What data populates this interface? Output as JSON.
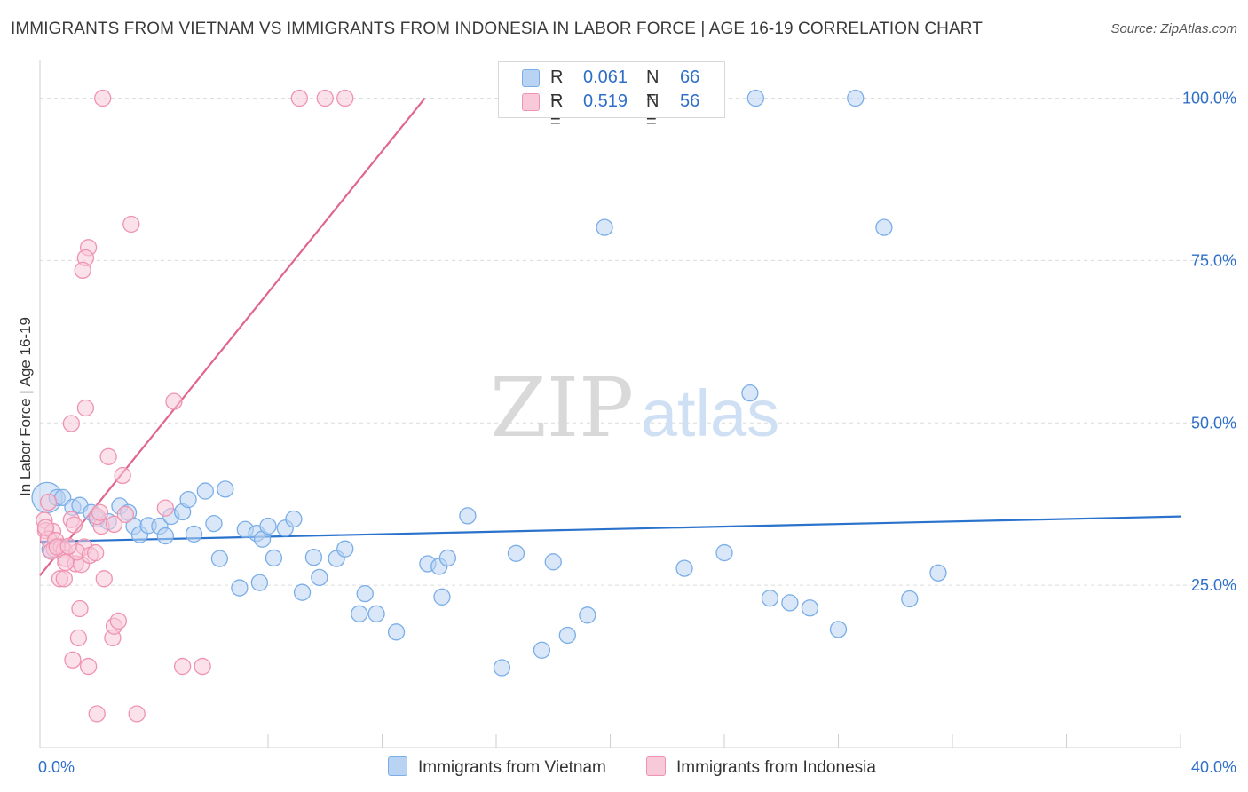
{
  "header": {
    "title": "IMMIGRANTS FROM VIETNAM VS IMMIGRANTS FROM INDONESIA IN LABOR FORCE | AGE 16-19 CORRELATION CHART",
    "source": "Source: ZipAtlas.com"
  },
  "watermark": {
    "zip": "ZIP",
    "atlas": "atlas"
  },
  "legend": {
    "vietnam": {
      "r_label": "R =",
      "r_value": "0.061",
      "n_label": "N =",
      "n_value": "66"
    },
    "indonesia": {
      "r_label": "R =",
      "r_value": "0.519",
      "n_label": "N =",
      "n_value": "56"
    }
  },
  "chart_data": {
    "type": "scatter",
    "ylabel": "In Labor Force | Age 16-19",
    "xlim": [
      0,
      40
    ],
    "ylim": [
      0,
      105
    ],
    "x_ticks": [
      0,
      40
    ],
    "x_tick_labels": [
      "0.0%",
      "40.0%"
    ],
    "y_ticks": [
      25,
      50,
      75,
      100
    ],
    "y_tick_labels": [
      "25.0%",
      "50.0%",
      "75.0%",
      "100.0%"
    ],
    "grid": "horizontal-dashed",
    "legend_position": "top-center",
    "series": [
      {
        "name": "Immigrants from Vietnam",
        "color": "#7aaee8",
        "fill": "#b9d3f2",
        "trend": {
          "x": [
            0,
            40
          ],
          "y": [
            31.7,
            35.6
          ],
          "color": "#2a72cc"
        },
        "points": [
          [
            0.25,
            38.5
          ],
          [
            0.6,
            38.5
          ],
          [
            0.8,
            38.5
          ],
          [
            1.15,
            37
          ],
          [
            1.4,
            37.3
          ],
          [
            1.8,
            36.2
          ],
          [
            2.0,
            35.2
          ],
          [
            2.4,
            34.8
          ],
          [
            2.8,
            37.2
          ],
          [
            3.1,
            36.2
          ],
          [
            3.3,
            34.1
          ],
          [
            3.5,
            32.8
          ],
          [
            3.8,
            34.2
          ],
          [
            4.2,
            34.1
          ],
          [
            4.4,
            32.6
          ],
          [
            4.6,
            35.6
          ],
          [
            5.0,
            36.3
          ],
          [
            5.2,
            38.2
          ],
          [
            5.4,
            32.9
          ],
          [
            5.8,
            39.5
          ],
          [
            6.1,
            34.5
          ],
          [
            6.3,
            29.1
          ],
          [
            6.5,
            39.8
          ],
          [
            7.0,
            24.6
          ],
          [
            7.2,
            33.6
          ],
          [
            7.6,
            33.0
          ],
          [
            7.8,
            32.1
          ],
          [
            7.7,
            25.4
          ],
          [
            8.0,
            34.1
          ],
          [
            8.2,
            29.2
          ],
          [
            8.6,
            33.8
          ],
          [
            8.9,
            35.2
          ],
          [
            9.2,
            23.9
          ],
          [
            9.8,
            26.2
          ],
          [
            9.6,
            29.3
          ],
          [
            10.4,
            29.1
          ],
          [
            10.7,
            30.6
          ],
          [
            11.2,
            20.6
          ],
          [
            11.4,
            23.7
          ],
          [
            11.8,
            20.6
          ],
          [
            12.5,
            17.8
          ],
          [
            13.6,
            28.3
          ],
          [
            14.0,
            27.9
          ],
          [
            14.3,
            29.2
          ],
          [
            14.1,
            23.2
          ],
          [
            15.0,
            35.7
          ],
          [
            16.2,
            12.3
          ],
          [
            16.7,
            29.9
          ],
          [
            17.6,
            15.0
          ],
          [
            18.0,
            28.6
          ],
          [
            18.5,
            17.3
          ],
          [
            19.2,
            20.4
          ],
          [
            19.8,
            80.1
          ],
          [
            22.6,
            27.6
          ],
          [
            24.0,
            30.0
          ],
          [
            24.9,
            54.6
          ],
          [
            25.1,
            100
          ],
          [
            25.6,
            23.0
          ],
          [
            26.3,
            22.3
          ],
          [
            27.0,
            21.5
          ],
          [
            28.0,
            18.2
          ],
          [
            28.6,
            100
          ],
          [
            29.6,
            80.1
          ],
          [
            30.5,
            22.9
          ],
          [
            31.5,
            26.9
          ],
          [
            0.35,
            30.5
          ]
        ]
      },
      {
        "name": "Immigrants from Indonesia",
        "color": "#ef93b0",
        "fill": "#f8c9d8",
        "trend": {
          "x": [
            0,
            13.5
          ],
          "y": [
            26.5,
            100
          ],
          "color": "#e06591"
        },
        "points": [
          [
            2.2,
            100
          ],
          [
            9.1,
            100
          ],
          [
            10.0,
            100
          ],
          [
            10.7,
            100
          ],
          [
            3.2,
            80.6
          ],
          [
            1.7,
            77.0
          ],
          [
            1.6,
            75.4
          ],
          [
            1.5,
            73.5
          ],
          [
            4.7,
            53.3
          ],
          [
            1.6,
            52.3
          ],
          [
            1.1,
            49.9
          ],
          [
            2.4,
            44.8
          ],
          [
            2.9,
            41.9
          ],
          [
            0.3,
            37.8
          ],
          [
            0.15,
            35.0
          ],
          [
            0.2,
            33.4
          ],
          [
            0.45,
            33.3
          ],
          [
            0.3,
            32.1
          ],
          [
            0.55,
            31.9
          ],
          [
            0.5,
            30.6
          ],
          [
            0.4,
            30.2
          ],
          [
            0.75,
            30.9
          ],
          [
            0.85,
            30.4
          ],
          [
            1.1,
            35.1
          ],
          [
            1.2,
            34.3
          ],
          [
            0.9,
            29.1
          ],
          [
            0.7,
            26.0
          ],
          [
            0.85,
            26.0
          ],
          [
            1.25,
            28.3
          ],
          [
            1.45,
            28.2
          ],
          [
            1.55,
            30.9
          ],
          [
            1.3,
            30.1
          ],
          [
            1.75,
            29.6
          ],
          [
            1.95,
            30.0
          ],
          [
            2.15,
            34.1
          ],
          [
            2.0,
            35.6
          ],
          [
            2.6,
            34.4
          ],
          [
            2.25,
            26.0
          ],
          [
            3.0,
            35.9
          ],
          [
            4.4,
            36.9
          ],
          [
            1.4,
            21.4
          ],
          [
            1.35,
            16.9
          ],
          [
            2.55,
            16.9
          ],
          [
            2.6,
            18.7
          ],
          [
            2.75,
            19.5
          ],
          [
            1.15,
            13.5
          ],
          [
            1.7,
            12.5
          ],
          [
            5.0,
            12.5
          ],
          [
            5.7,
            12.5
          ],
          [
            2.0,
            5.2
          ],
          [
            3.4,
            5.2
          ],
          [
            0.6,
            30.9
          ],
          [
            1.0,
            31.0
          ],
          [
            2.1,
            36.2
          ],
          [
            0.2,
            33.9
          ],
          [
            0.9,
            28.5
          ]
        ]
      }
    ]
  }
}
